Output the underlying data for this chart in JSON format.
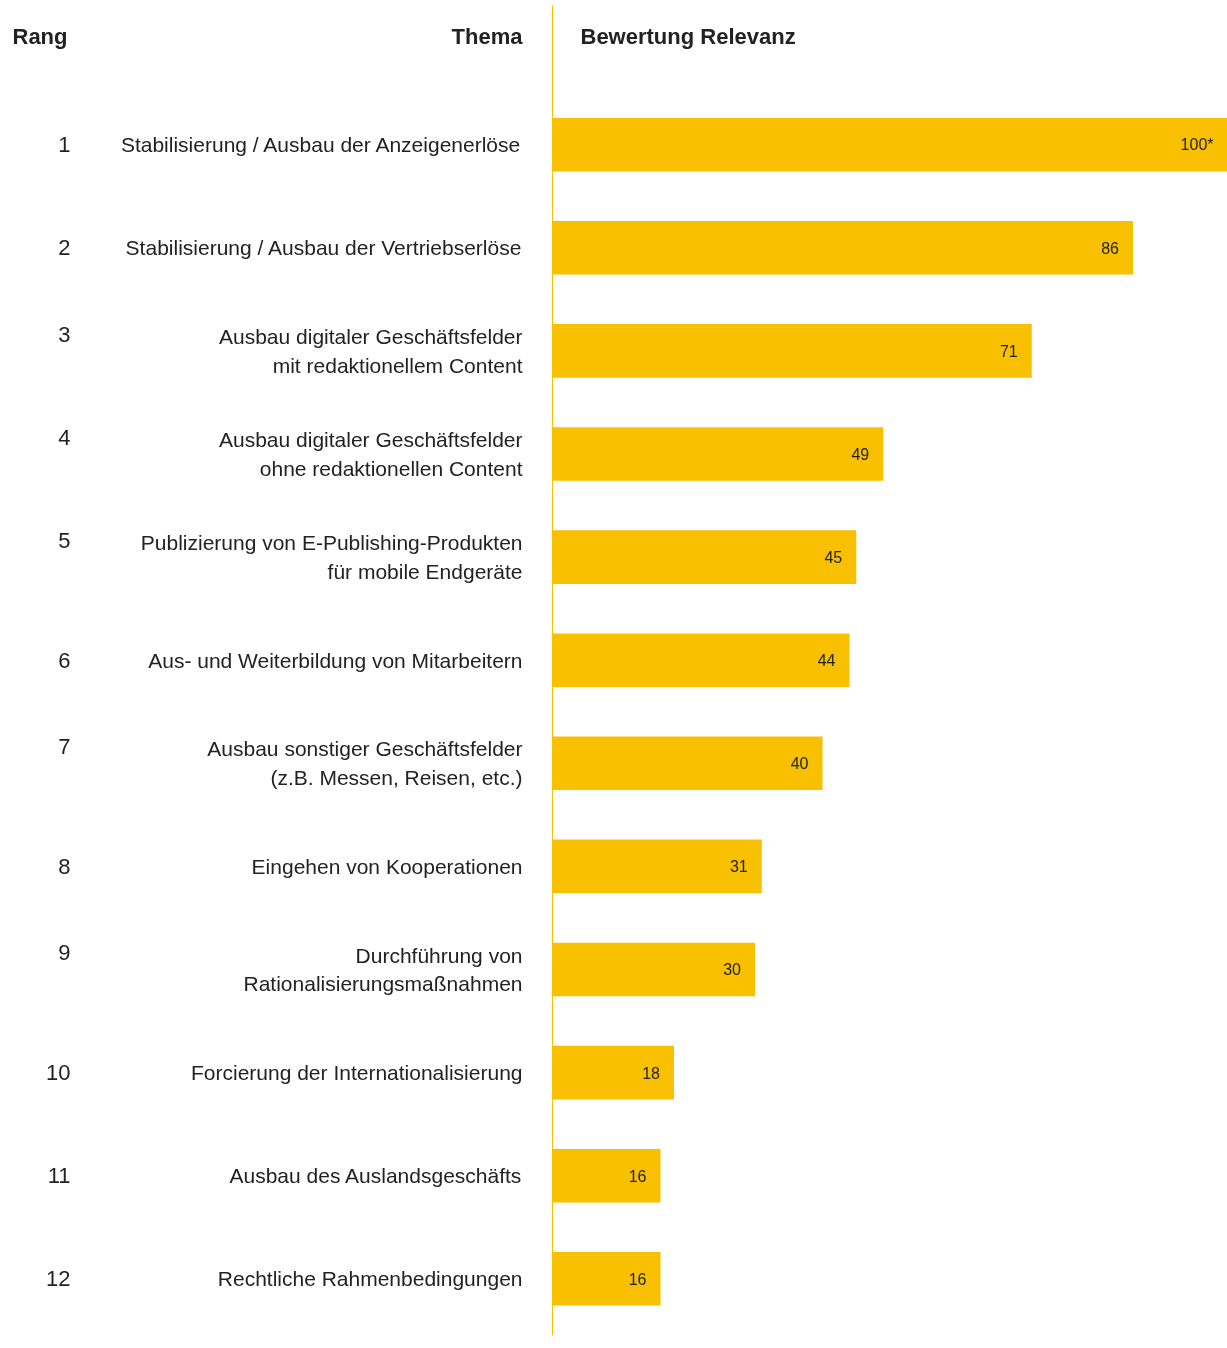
{
  "chart_data": {
    "type": "bar",
    "orientation": "horizontal",
    "title": "Bewertung Relevanz",
    "ylabel": "Thema",
    "categories": [
      "Stabilisierung / Ausbau der Anzeigenerlöse",
      "Stabilisierung / Ausbau der Vertriebserlöse",
      "Ausbau digitaler Geschäftsfelder\nmit redaktionellem Content",
      "Ausbau digitaler Geschäftsfelder\nohne redaktionellen Content",
      "Publizierung von E-Publishing-Produkten\nfür mobile Endgeräte",
      "Aus- und Weiterbildung von Mitarbeitern",
      "Ausbau sonstiger Geschäftsfelder\n(z.B. Messen, Reisen, etc.)",
      "Eingehen von Kooperationen",
      "Durchführung von\nRationalisierungsmaßnahmen",
      "Forcierung der Internationalisierung",
      "Ausbau des Auslandsgeschäfts",
      "Rechtliche Rahmenbedingungen"
    ],
    "values": [
      100,
      86,
      71,
      49,
      45,
      44,
      40,
      31,
      30,
      18,
      16,
      16
    ],
    "value_labels": [
      "100*",
      "86",
      "71",
      "49",
      "45",
      "44",
      "40",
      "31",
      "30",
      "18",
      "16",
      "16"
    ],
    "color": "#f9c000",
    "xlim": [
      0,
      100
    ],
    "tick_labels": "y",
    "annotations": [
      "Rang",
      "1",
      "2",
      "3",
      "4",
      "5",
      "6",
      "7",
      "8",
      "9",
      "10",
      "11",
      "12"
    ]
  }
}
